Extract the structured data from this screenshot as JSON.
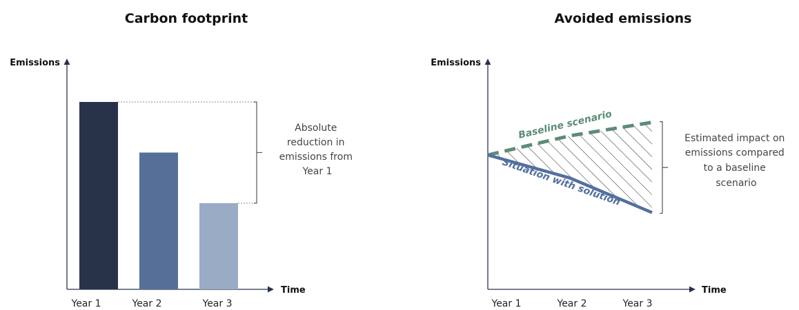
{
  "colors": {
    "bar1": "#28334a",
    "bar2": "#566f98",
    "bar3": "#9aabc6",
    "baseline": "#5c8c75",
    "solution": "#536f9e",
    "axis": "#28334a",
    "hatch": "#333333"
  },
  "left_chart": {
    "title": "Carbon footprint",
    "y_axis_label": "Emissions",
    "x_axis_label": "Time",
    "annotation": [
      "Absolute",
      "reduction in",
      "emissions from",
      "Year 1"
    ]
  },
  "right_chart": {
    "title": "Avoided emissions",
    "y_axis_label": "Emissions",
    "x_axis_label": "Time",
    "annotation": [
      "Estimated impact on",
      "emissions compared",
      "to a baseline",
      "scenario"
    ]
  },
  "chart_data": [
    {
      "type": "bar",
      "title": "Carbon footprint",
      "xlabel": "Time",
      "ylabel": "Emissions",
      "categories": [
        "Year 1",
        "Year 2",
        "Year 3"
      ],
      "values": [
        100,
        73,
        46
      ],
      "ylim": [
        0,
        120
      ],
      "grid": false,
      "legend": "none"
    },
    {
      "type": "line",
      "title": "Avoided emissions",
      "xlabel": "Time",
      "ylabel": "Emissions",
      "categories": [
        "Year 1",
        "Year 2",
        "Year 3"
      ],
      "x": [
        0,
        1,
        2
      ],
      "series": [
        {
          "name": "Baseline scenario",
          "values": [
            70,
            80,
            87
          ],
          "style": "dashed"
        },
        {
          "name": "Situation with solution",
          "values": [
            70,
            58,
            40
          ],
          "style": "solid"
        }
      ],
      "ylim": [
        0,
        120
      ],
      "grid": false,
      "legend": "inline labels"
    }
  ]
}
